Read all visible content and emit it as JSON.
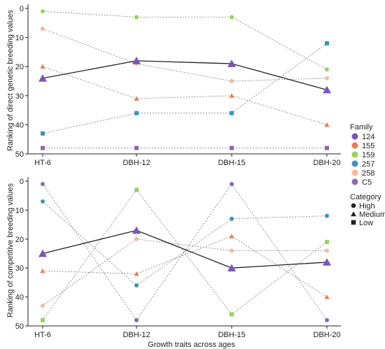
{
  "colors": {
    "124": "#7b56b8",
    "155": "#ec7a56",
    "159": "#98d35a",
    "257": "#3c92bd",
    "258": "#f6b99a",
    "C5": "#8d67b0",
    "axis": "#222222",
    "dotted": "#8a8a8a",
    "bold": "#222222"
  },
  "chart_data": [
    {
      "type": "line",
      "panel": "top",
      "ylabel": "Ranking of direct genetic breeding values",
      "xlabel": "",
      "categories": [
        "HT-6",
        "DBH-12",
        "DBH-15",
        "DBH-20"
      ],
      "ylim": [
        0,
        50
      ],
      "y_reversed": true,
      "yticks": [
        "0",
        "10",
        "20",
        "30",
        "40",
        "50"
      ],
      "series": [
        {
          "name": "124",
          "shape": "triangle",
          "bold": true,
          "values": [
            24,
            18,
            19,
            28
          ]
        },
        {
          "name": "155",
          "shape": "triangle",
          "bold": false,
          "values": [
            20,
            31,
            30,
            40
          ]
        },
        {
          "name": "159",
          "shape": "circle",
          "bold": false,
          "values": [
            1,
            3,
            3,
            21
          ]
        },
        {
          "name": "257",
          "shape": "square",
          "bold": false,
          "values": [
            43,
            36,
            36,
            12
          ]
        },
        {
          "name": "258",
          "shape": "circle",
          "bold": false,
          "values": [
            7,
            19,
            25,
            24
          ]
        },
        {
          "name": "C5",
          "shape": "square",
          "bold": false,
          "values": [
            48,
            48,
            48,
            48
          ]
        }
      ]
    },
    {
      "type": "line",
      "panel": "bottom",
      "ylabel": "Ranking of competitive breeding values",
      "xlabel": "Growth traits across ages",
      "categories": [
        "HT-6",
        "DBH-12",
        "DBH-15",
        "DBH-20"
      ],
      "ylim": [
        0,
        50
      ],
      "y_reversed": true,
      "yticks": [
        "0",
        "10",
        "20",
        "30",
        "40",
        "50"
      ],
      "series": [
        {
          "name": "124",
          "shape": "triangle",
          "bold": true,
          "values": [
            25,
            17,
            30,
            28
          ]
        },
        {
          "name": "155",
          "shape": "triangle",
          "bold": false,
          "values": [
            31,
            32,
            19,
            40
          ]
        },
        {
          "name": "159",
          "shape": "square",
          "bold": false,
          "values": [
            48,
            3,
            46,
            21
          ]
        },
        {
          "name": "257",
          "shape": "circle",
          "bold": false,
          "values": [
            7,
            36,
            13,
            12
          ]
        },
        {
          "name": "258",
          "shape": "circle",
          "bold": false,
          "values": [
            43,
            20,
            24,
            24
          ]
        },
        {
          "name": "C5",
          "shape": "circle",
          "bold": false,
          "values": [
            1,
            48,
            1,
            48
          ]
        }
      ]
    }
  ],
  "legend": {
    "family_title": "Family",
    "family_items": [
      "124",
      "155",
      "159",
      "257",
      "258",
      "C5"
    ],
    "category_title": "Category",
    "category_items": [
      {
        "label": "High",
        "shape": "circle"
      },
      {
        "label": "Medium",
        "shape": "triangle"
      },
      {
        "label": "Low",
        "shape": "square"
      }
    ]
  }
}
